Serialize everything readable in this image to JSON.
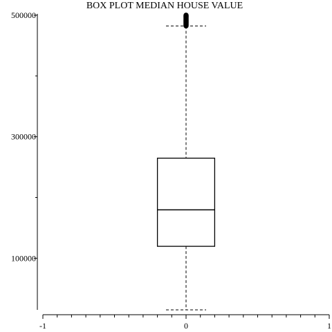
{
  "chart_data": {
    "type": "boxplot",
    "title": "BOX PLOT MEDIAN HOUSE VALUE",
    "xlabel": "",
    "ylabel": "",
    "xlim": [
      -1,
      1
    ],
    "ylim": [
      14999,
      500001
    ],
    "x_ticks": [
      -1,
      0,
      1
    ],
    "x_tick_labels": [
      "-1",
      "0",
      "1"
    ],
    "y_ticks": [
      100000,
      300000,
      500000
    ],
    "y_tick_labels": [
      "100000",
      "300000",
      "500000"
    ],
    "box": {
      "x": 0,
      "width": 0.4,
      "whisker_low": 14999,
      "q1": 119600,
      "median": 179700,
      "q3": 264725,
      "whisker_high": 482200
    },
    "outliers_range": [
      482500,
      500001
    ],
    "grid": false,
    "legend": "none"
  }
}
